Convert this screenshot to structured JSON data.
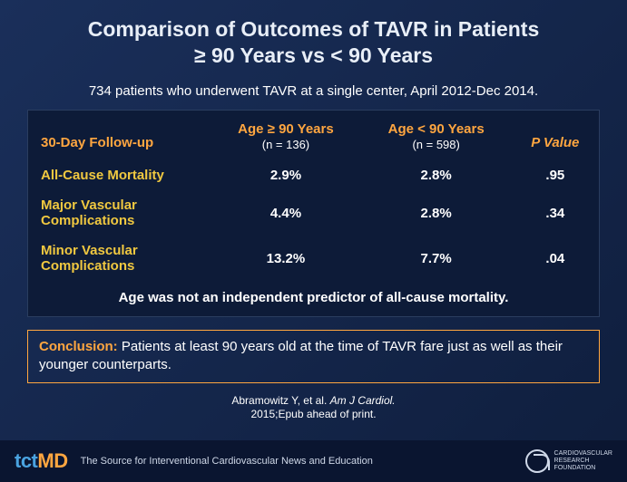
{
  "title_line1": "Comparison of Outcomes of TAVR in Patients",
  "title_line2": "≥ 90 Years vs < 90 Years",
  "subtitle": "734 patients who underwent TAVR at a single center, April 2012-Dec 2014.",
  "table": {
    "corner": "30-Day Follow-up",
    "col1_head": "Age ≥ 90 Years",
    "col1_sub": "(n = 136)",
    "col2_head": "Age < 90 Years",
    "col2_sub": "(n = 598)",
    "col3_head": "P Value",
    "rows": [
      {
        "label": "All-Cause Mortality",
        "c1": "2.9%",
        "c2": "2.8%",
        "p": ".95"
      },
      {
        "label": "Major Vascular Complications",
        "c1": "4.4%",
        "c2": "2.8%",
        "p": ".34"
      },
      {
        "label": "Minor Vascular Complications",
        "c1": "13.2%",
        "c2": "7.7%",
        "p": ".04"
      }
    ],
    "note": "Age was not an independent predictor of all-cause mortality."
  },
  "conclusion_lead": "Conclusion:",
  "conclusion_text": "  Patients at least 90 years old at the time of TAVR fare just as well as their younger counterparts.",
  "citation_line1_a": "Abramowitz Y, et al. ",
  "citation_line1_b": "Am J Cardiol.",
  "citation_line2": "2015;Epub ahead of print.",
  "footer": {
    "logo_a": "tct",
    "logo_b": "MD",
    "tagline": "The Source for Interventional Cardiovascular News and Education",
    "org1": "Cardiovascular",
    "org2": "Research",
    "org3": "Foundation"
  },
  "colors": {
    "bg_start": "#1a2f5a",
    "bg_end": "#0f1e3d",
    "accent_orange": "#ffa640",
    "accent_yellow": "#f0c840",
    "text": "#ffffff",
    "table_bg": "#0d1b38",
    "logo_blue": "#4aa3e0"
  }
}
